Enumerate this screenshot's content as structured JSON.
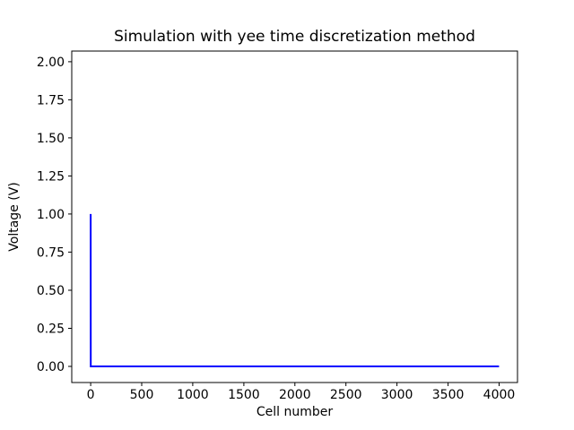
{
  "chart_data": {
    "type": "line",
    "title": "Simulation with yee time discretization method",
    "xlabel": "Cell number",
    "ylabel": "Voltage (V)",
    "xlim": [
      -185,
      4180
    ],
    "ylim": [
      -0.106,
      2.07
    ],
    "grid": false,
    "legend": null,
    "background_color": "#ffffff",
    "frame_color": "#000000",
    "x_ticks": [
      {
        "value": 0,
        "label": "0"
      },
      {
        "value": 500,
        "label": "500"
      },
      {
        "value": 1000,
        "label": "1000"
      },
      {
        "value": 1500,
        "label": "1500"
      },
      {
        "value": 2000,
        "label": "2000"
      },
      {
        "value": 2500,
        "label": "2500"
      },
      {
        "value": 3000,
        "label": "3000"
      },
      {
        "value": 3500,
        "label": "3500"
      },
      {
        "value": 4000,
        "label": "4000"
      }
    ],
    "y_ticks": [
      {
        "value": 0.0,
        "label": "0.00"
      },
      {
        "value": 0.25,
        "label": "0.25"
      },
      {
        "value": 0.5,
        "label": "0.50"
      },
      {
        "value": 0.75,
        "label": "0.75"
      },
      {
        "value": 1.0,
        "label": "1.00"
      },
      {
        "value": 1.25,
        "label": "1.25"
      },
      {
        "value": 1.5,
        "label": "1.50"
      },
      {
        "value": 1.75,
        "label": "1.75"
      },
      {
        "value": 2.0,
        "label": "2.00"
      }
    ],
    "series": [
      {
        "name": "voltage",
        "color": "#0000ff",
        "line_width": 2,
        "points": [
          [
            0,
            1.0
          ],
          [
            1,
            0.0
          ],
          [
            3999,
            0.0
          ]
        ]
      }
    ]
  }
}
